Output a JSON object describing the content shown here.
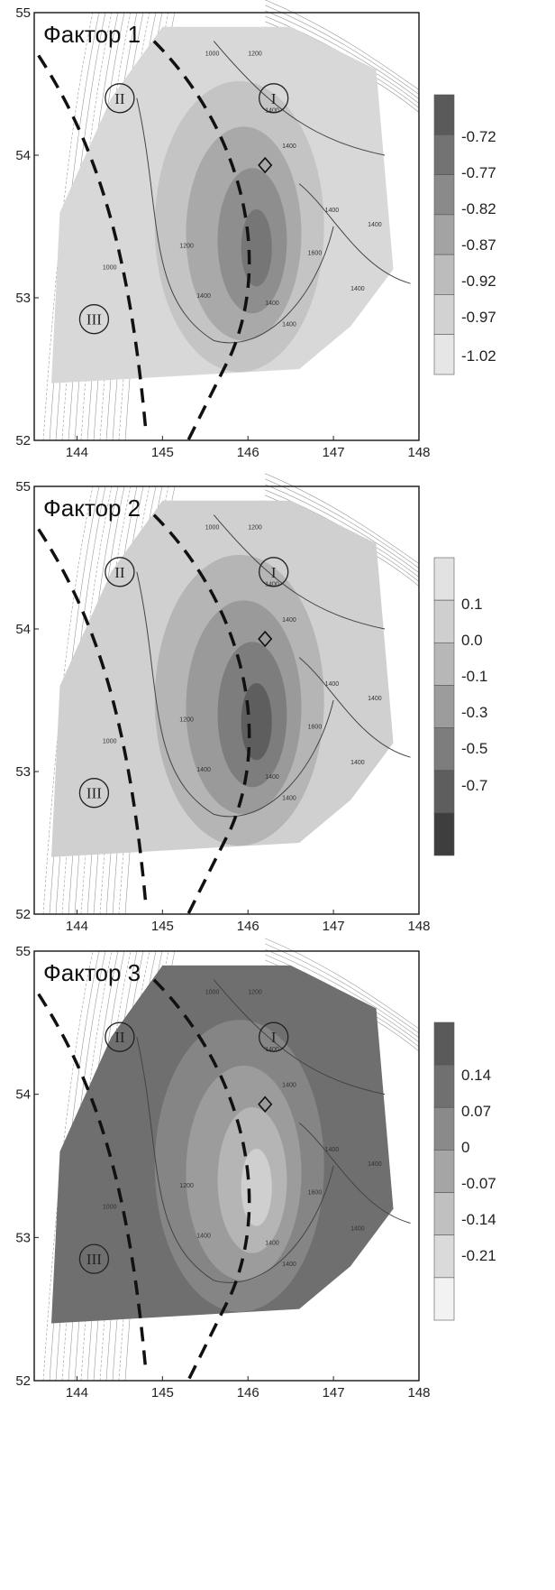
{
  "panels": [
    {
      "title": "Фактор 1",
      "x_ticks": [
        "144",
        "145",
        "146",
        "147",
        "148"
      ],
      "y_ticks": [
        "55",
        "54",
        "53",
        "52"
      ],
      "regions": [
        "I",
        "II",
        "III"
      ],
      "colorbar": [
        "-0.72",
        "-0.77",
        "-0.82",
        "-0.87",
        "-0.92",
        "-0.97",
        "-1.02"
      ],
      "contour_labels": [
        "1000",
        "1200",
        "1400",
        "1400",
        "1400",
        "1400",
        "1400",
        "1200",
        "1400",
        "1400",
        "1600",
        "1400",
        "1000"
      ]
    },
    {
      "title": "Фактор 2",
      "x_ticks": [
        "144",
        "145",
        "146",
        "147",
        "148"
      ],
      "y_ticks": [
        "55",
        "54",
        "53",
        "52"
      ],
      "regions": [
        "I",
        "II",
        "III"
      ],
      "colorbar": [
        "0.1",
        "0.0",
        "-0.1",
        "-0.3",
        "-0.5",
        "-0.7"
      ],
      "contour_labels": [
        "1000",
        "1200",
        "1400",
        "1400",
        "1400",
        "1400",
        "1400",
        "1200",
        "1400",
        "1400",
        "1600",
        "1400",
        "1000"
      ]
    },
    {
      "title": "Фактор 3",
      "x_ticks": [
        "144",
        "145",
        "146",
        "147",
        "148"
      ],
      "y_ticks": [
        "55",
        "54",
        "53",
        "52"
      ],
      "regions": [
        "I",
        "II",
        "III"
      ],
      "colorbar": [
        "0.14",
        "0.07",
        "0",
        "-0.07",
        "-0.14",
        "-0.21"
      ],
      "contour_labels": [
        "1000",
        "1200",
        "1400",
        "1400",
        "1400",
        "1400",
        "1400",
        "1200",
        "1400",
        "1400",
        "1600",
        "1400",
        "1000"
      ]
    }
  ],
  "colors": {
    "frame": "#222222",
    "dashed_boundary": "#111111",
    "contour": "#444444",
    "bathymetry": "#9a9a9a"
  }
}
